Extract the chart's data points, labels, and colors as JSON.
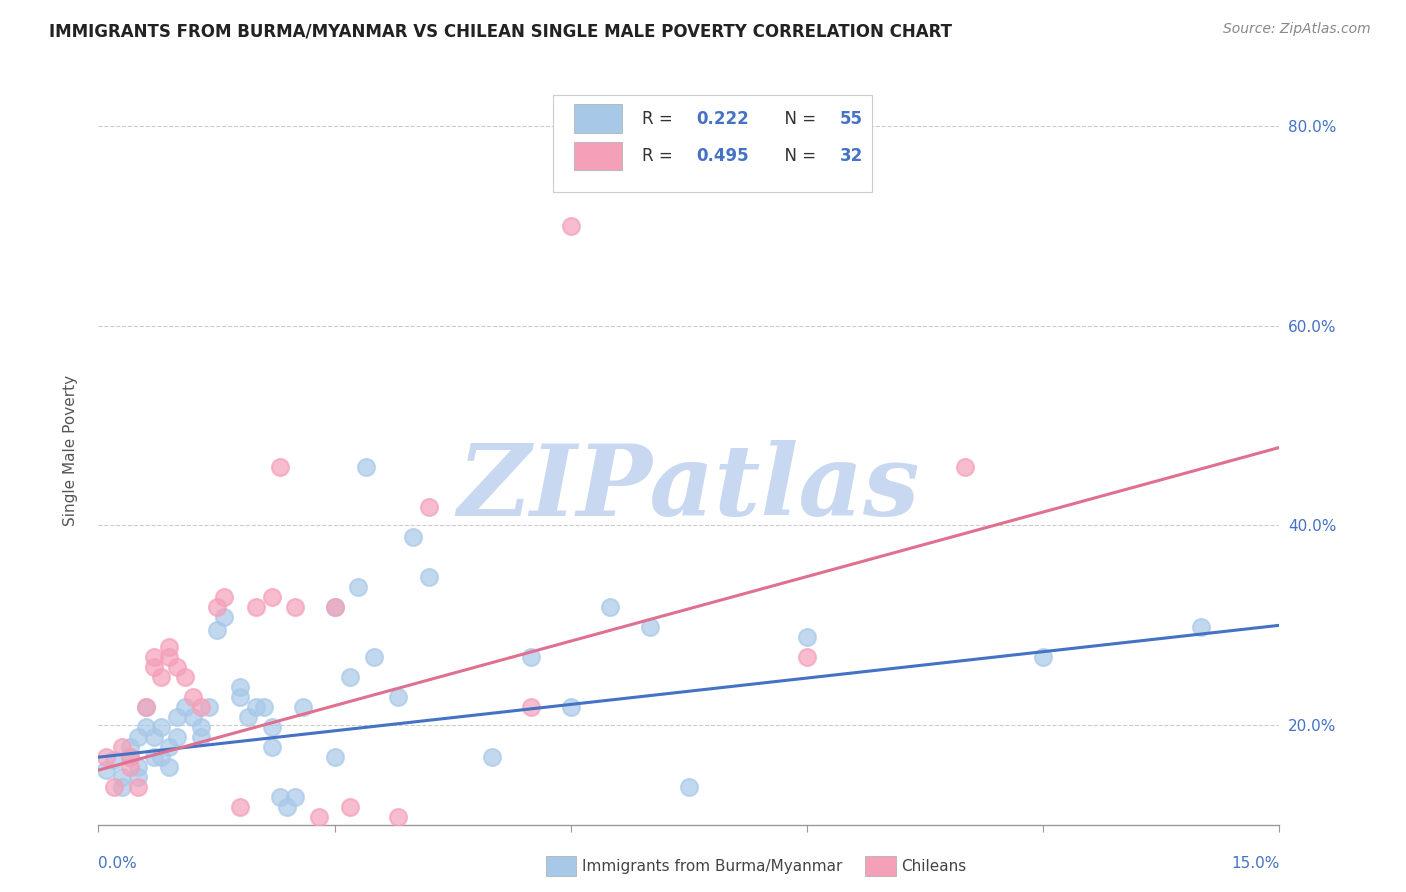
{
  "title": "IMMIGRANTS FROM BURMA/MYANMAR VS CHILEAN SINGLE MALE POVERTY CORRELATION CHART",
  "source": "Source: ZipAtlas.com",
  "ylabel": "Single Male Poverty",
  "xlim": [
    0.0,
    0.15
  ],
  "ylim": [
    0.1,
    0.85
  ],
  "blue_color": "#A8C8E8",
  "pink_color": "#F4A0B8",
  "blue_line_color": "#4472C4",
  "pink_line_color": "#E07090",
  "legend_text_color": "#4472C4",
  "watermark": "ZIPatlas",
  "watermark_color": "#C8D8F0",
  "blue_scatter_x": [
    0.001,
    0.002,
    0.003,
    0.003,
    0.004,
    0.004,
    0.005,
    0.005,
    0.005,
    0.006,
    0.006,
    0.007,
    0.007,
    0.008,
    0.008,
    0.009,
    0.009,
    0.01,
    0.01,
    0.011,
    0.012,
    0.013,
    0.013,
    0.014,
    0.015,
    0.016,
    0.018,
    0.018,
    0.019,
    0.02,
    0.021,
    0.022,
    0.022,
    0.023,
    0.024,
    0.025,
    0.026,
    0.03,
    0.03,
    0.032,
    0.033,
    0.034,
    0.035,
    0.038,
    0.04,
    0.042,
    0.05,
    0.055,
    0.06,
    0.065,
    0.07,
    0.075,
    0.09,
    0.12,
    0.14
  ],
  "blue_scatter_y": [
    0.155,
    0.165,
    0.148,
    0.138,
    0.168,
    0.178,
    0.188,
    0.158,
    0.148,
    0.198,
    0.218,
    0.188,
    0.168,
    0.198,
    0.168,
    0.178,
    0.158,
    0.208,
    0.188,
    0.218,
    0.208,
    0.198,
    0.188,
    0.218,
    0.295,
    0.308,
    0.238,
    0.228,
    0.208,
    0.218,
    0.218,
    0.198,
    0.178,
    0.128,
    0.118,
    0.128,
    0.218,
    0.318,
    0.168,
    0.248,
    0.338,
    0.458,
    0.268,
    0.228,
    0.388,
    0.348,
    0.168,
    0.268,
    0.218,
    0.318,
    0.298,
    0.138,
    0.288,
    0.268,
    0.298
  ],
  "pink_scatter_x": [
    0.001,
    0.002,
    0.003,
    0.004,
    0.004,
    0.005,
    0.006,
    0.007,
    0.007,
    0.008,
    0.009,
    0.009,
    0.01,
    0.011,
    0.012,
    0.013,
    0.015,
    0.016,
    0.018,
    0.02,
    0.022,
    0.023,
    0.025,
    0.028,
    0.03,
    0.032,
    0.038,
    0.042,
    0.055,
    0.06,
    0.09,
    0.11
  ],
  "pink_scatter_y": [
    0.168,
    0.138,
    0.178,
    0.158,
    0.168,
    0.138,
    0.218,
    0.258,
    0.268,
    0.248,
    0.278,
    0.268,
    0.258,
    0.248,
    0.228,
    0.218,
    0.318,
    0.328,
    0.118,
    0.318,
    0.328,
    0.458,
    0.318,
    0.108,
    0.318,
    0.118,
    0.108,
    0.418,
    0.218,
    0.7,
    0.268,
    0.458
  ],
  "blue_trend_x": [
    0.0,
    0.15
  ],
  "blue_trend_y": [
    0.168,
    0.3
  ],
  "pink_trend_x": [
    0.0,
    0.15
  ],
  "pink_trend_y": [
    0.155,
    0.478
  ],
  "yticks": [
    0.2,
    0.4,
    0.6,
    0.8
  ],
  "ytick_labels": [
    "20.0%",
    "40.0%",
    "60.0%",
    "80.0%"
  ]
}
